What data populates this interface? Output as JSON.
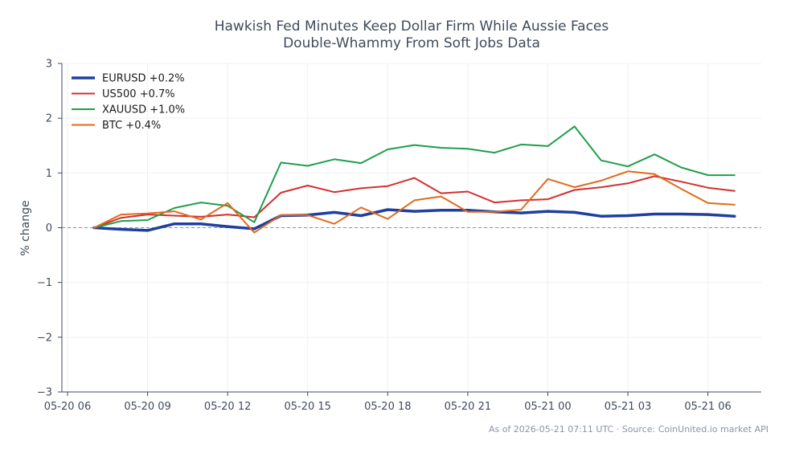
{
  "chart_data": {
    "type": "line",
    "title_lines": [
      "Hawkish Fed Minutes Keep Dollar Firm While Aussie Faces",
      "Double-Whammy From Soft Jobs Data"
    ],
    "ylabel": "% change",
    "xlabel": "",
    "ylim": [
      -3,
      3
    ],
    "yticks": [
      -3,
      -2,
      -1,
      0,
      1,
      2,
      3
    ],
    "ytick_labels": [
      "−3",
      "−2",
      "−1",
      "0",
      "1",
      "2",
      "3"
    ],
    "x": [
      "05-20 07",
      "05-20 08",
      "05-20 09",
      "05-20 10",
      "05-20 11",
      "05-20 12",
      "05-20 13",
      "05-20 14",
      "05-20 15",
      "05-20 16",
      "05-20 17",
      "05-20 18",
      "05-20 19",
      "05-20 20",
      "05-20 21",
      "05-20 22",
      "05-20 23",
      "05-21 00",
      "05-21 01",
      "05-21 02",
      "05-21 03",
      "05-21 04",
      "05-21 05",
      "05-21 06",
      "05-21 07"
    ],
    "xticks": [
      "05-20 06",
      "05-20 09",
      "05-20 12",
      "05-20 15",
      "05-20 18",
      "05-20 21",
      "05-21 00",
      "05-21 03",
      "05-21 06"
    ],
    "xlim": [
      "05-20 06",
      "05-21 08"
    ],
    "zero_line": true,
    "grid": true,
    "legend_position": "top-left",
    "series": [
      {
        "name": "EURUSD +0.2%",
        "color": "#1f3fa0",
        "width": 3.5,
        "values": [
          0.0,
          -0.03,
          -0.05,
          0.07,
          0.07,
          0.02,
          -0.02,
          0.22,
          0.23,
          0.28,
          0.22,
          0.33,
          0.3,
          0.32,
          0.32,
          0.29,
          0.27,
          0.3,
          0.28,
          0.21,
          0.22,
          0.25,
          0.25,
          0.24,
          0.21
        ]
      },
      {
        "name": "US500 +0.7%",
        "color": "#d42f2f",
        "width": 2,
        "values": [
          0.0,
          0.18,
          0.24,
          0.22,
          0.2,
          0.24,
          0.19,
          0.64,
          0.77,
          0.65,
          0.72,
          0.76,
          0.91,
          0.63,
          0.66,
          0.46,
          0.5,
          0.52,
          0.69,
          0.74,
          0.81,
          0.94,
          0.84,
          0.73,
          0.67
        ]
      },
      {
        "name": "XAUUSD +1.0%",
        "color": "#1f9e4a",
        "width": 2,
        "values": [
          0.0,
          0.12,
          0.14,
          0.36,
          0.46,
          0.4,
          0.1,
          1.19,
          1.13,
          1.25,
          1.18,
          1.43,
          1.51,
          1.46,
          1.44,
          1.37,
          1.52,
          1.49,
          1.85,
          1.23,
          1.12,
          1.34,
          1.1,
          0.96,
          0.96
        ]
      },
      {
        "name": "BTC +0.4%",
        "color": "#e26a1b",
        "width": 2,
        "values": [
          0.0,
          0.24,
          0.26,
          0.3,
          0.15,
          0.45,
          -0.09,
          0.23,
          0.23,
          0.07,
          0.37,
          0.16,
          0.5,
          0.57,
          0.29,
          0.29,
          0.33,
          0.89,
          0.74,
          0.86,
          1.03,
          0.98,
          0.71,
          0.45,
          0.42
        ]
      }
    ]
  },
  "footer_note": "As of 2026-05-21 07:11 UTC · Source: CoinUnited.io market API"
}
